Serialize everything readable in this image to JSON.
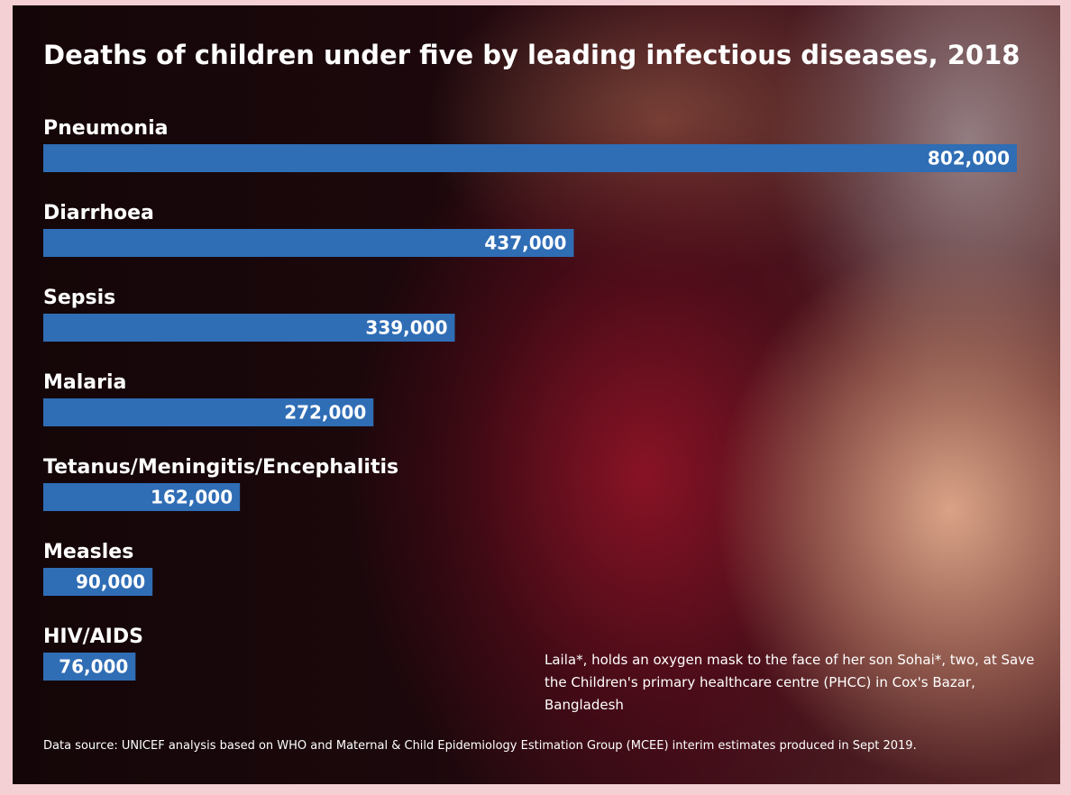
{
  "chart_data": {
    "type": "bar",
    "orientation": "horizontal",
    "title": "Deaths of children under five by leading infectious diseases, 2018",
    "categories": [
      "Pneumonia",
      "Diarrhoea",
      "Sepsis",
      "Malaria",
      "Tetanus/Meningitis/Encephalitis",
      "Measles",
      "HIV/AIDS"
    ],
    "values": [
      802000,
      437000,
      339000,
      272000,
      162000,
      90000,
      76000
    ],
    "value_labels": [
      "802,000",
      "437,000",
      "339,000",
      "272,000",
      "162,000",
      "90,000",
      "76,000"
    ],
    "color": "#2f6db5",
    "caption": "Laila*, holds an oxygen mask to the face of her son Sohai*, two, at Save the Children's primary healthcare centre (PHCC) in Cox's Bazar, Bangladesh",
    "source": "Data source: UNICEF analysis based on WHO and Maternal & Child Epidemiology Estimation Group (MCEE) interim estimates produced in Sept 2019."
  }
}
